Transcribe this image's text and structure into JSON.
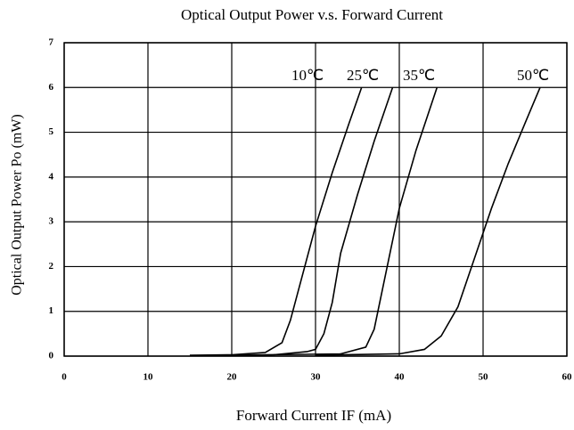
{
  "chart_data": {
    "type": "line",
    "title": "Optical Output Power v.s. Forward Current",
    "x_label": "Forward Current IF (mA)",
    "y_label": "Optical Output Power Po (mW)",
    "xlim": [
      0,
      60
    ],
    "xticks": [
      0,
      10,
      20,
      30,
      40,
      50,
      60
    ],
    "ylim": [
      0,
      7
    ],
    "yticks": [
      0,
      1,
      2,
      3,
      4,
      5,
      6,
      7
    ],
    "grid": true,
    "series": [
      {
        "name": "10℃",
        "color": "#000000",
        "x": [
          15,
          20,
          24,
          26,
          27,
          28,
          30,
          32,
          34,
          35.5
        ],
        "values": [
          0.02,
          0.03,
          0.08,
          0.3,
          0.8,
          1.5,
          2.9,
          4.1,
          5.2,
          6.0
        ]
      },
      {
        "name": "25℃",
        "color": "#000000",
        "x": [
          15,
          25,
          29,
          30,
          31,
          32,
          33,
          35,
          37,
          39.2
        ],
        "values": [
          0.01,
          0.03,
          0.1,
          0.15,
          0.5,
          1.2,
          2.3,
          3.6,
          4.8,
          6.0
        ]
      },
      {
        "name": "35℃",
        "color": "#000000",
        "x": [
          20,
          33,
          36,
          37,
          38,
          40,
          42,
          44.5
        ],
        "values": [
          0.02,
          0.05,
          0.2,
          0.6,
          1.5,
          3.3,
          4.6,
          6.0
        ]
      },
      {
        "name": "50℃",
        "color": "#000000",
        "x": [
          30,
          40,
          43,
          45,
          47,
          49,
          51,
          53,
          55,
          56.8
        ],
        "values": [
          0.02,
          0.05,
          0.15,
          0.45,
          1.1,
          2.2,
          3.3,
          4.3,
          5.2,
          6.0
        ]
      }
    ]
  }
}
